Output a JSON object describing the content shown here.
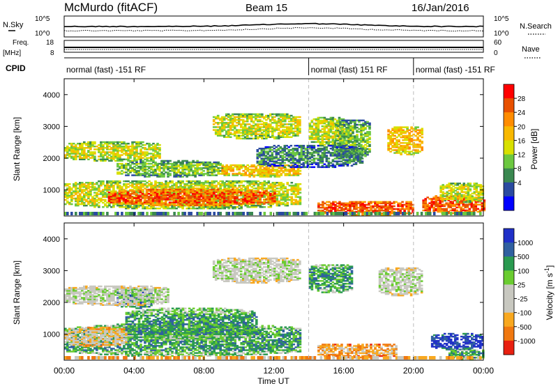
{
  "header": {
    "station": "McMurdo (fitACF)",
    "beam": "Beam 15",
    "date": "16/Jan/2016"
  },
  "side_labels": {
    "nsky": "N.Sky",
    "freq": "Freq.",
    "freq_unit": "[MHz]",
    "cpid": "CPID",
    "nsearch": "N.Search",
    "nave": "Nave"
  },
  "cpid_segments": [
    {
      "label": "normal (fast) -151 RF",
      "start_h": 0,
      "end_h": 14
    },
    {
      "label": "normal (fast) 151 RF",
      "start_h": 14,
      "end_h": 20
    },
    {
      "label": "normal (fast) -151 RF",
      "start_h": 20,
      "end_h": 24
    }
  ],
  "nsky_ticks": {
    "top": "10^5",
    "bottom": "10^0"
  },
  "freq_ticks": {
    "top": "18",
    "bottom": "8"
  },
  "nave_ticks": {
    "top": "60",
    "bottom": "0"
  },
  "chart_data": [
    {
      "type": "heatmap",
      "panel": "power",
      "ylabel": "Slant Range [km]",
      "xlabel": "",
      "x_range_h": [
        0,
        24
      ],
      "ylim": [
        180,
        4500
      ],
      "yticks": [
        1000,
        2000,
        3000,
        4000
      ],
      "colorbar": {
        "label": "Power [dB]",
        "ticks": [
          "28",
          "24",
          "20",
          "16",
          "12",
          "8",
          "4"
        ],
        "colors": [
          "#ff0000",
          "#e85000",
          "#ff8c00",
          "#f8b800",
          "#d8e000",
          "#6cc840",
          "#3a8850",
          "#2a4aa0",
          "#0000ff"
        ]
      },
      "features": [
        {
          "t0": 0.0,
          "t1": 13.5,
          "r0": 400,
          "r1": 1300,
          "level": 4
        },
        {
          "t0": 2.5,
          "t1": 12.0,
          "r0": 500,
          "r1": 1000,
          "level": 7
        },
        {
          "t0": 0.0,
          "t1": 5.5,
          "r0": 1900,
          "r1": 2500,
          "level": 4
        },
        {
          "t0": 3.0,
          "t1": 9.0,
          "r0": 1400,
          "r1": 1900,
          "level": 3
        },
        {
          "t0": 9.0,
          "t1": 13.5,
          "r0": 1400,
          "r1": 1800,
          "level": 5
        },
        {
          "t0": 8.5,
          "t1": 13.5,
          "r0": 2600,
          "r1": 3400,
          "level": 4
        },
        {
          "t0": 14.0,
          "t1": 16.0,
          "r0": 2400,
          "r1": 3300,
          "level": 4
        },
        {
          "t0": 15.5,
          "t1": 17.5,
          "r0": 2000,
          "r1": 3200,
          "level": 3
        },
        {
          "t0": 18.5,
          "t1": 20.5,
          "r0": 2100,
          "r1": 3000,
          "level": 5
        },
        {
          "t0": 14.5,
          "t1": 20.0,
          "r0": 200,
          "r1": 650,
          "level": 7
        },
        {
          "t0": 20.5,
          "t1": 24.0,
          "r0": 250,
          "r1": 800,
          "level": 7
        },
        {
          "t0": 21.5,
          "t1": 24.0,
          "r0": 600,
          "r1": 1200,
          "level": 4
        },
        {
          "t0": 11.0,
          "t1": 17.0,
          "r0": 1700,
          "r1": 2400,
          "level": 2
        }
      ]
    },
    {
      "type": "heatmap",
      "panel": "velocity",
      "ylabel": "Slant Range [km]",
      "xlabel": "Time UT",
      "x_range_h": [
        0,
        24
      ],
      "ylim": [
        180,
        4500
      ],
      "yticks": [
        1000,
        2000,
        3000,
        4000
      ],
      "xtick_labels": [
        "00:00",
        "04:00",
        "08:00",
        "12:00",
        "16:00",
        "20:00",
        "00:00"
      ],
      "colorbar": {
        "label": "Velocity [m s^-1]",
        "ticks": [
          "1000",
          "500",
          "100",
          "25",
          "-25",
          "-100",
          "-500",
          "-1000"
        ],
        "colors": [
          "#2030c8",
          "#3060a0",
          "#2a9a50",
          "#6acc30",
          "#c8c8c0",
          "#c8c8c0",
          "#f8a820",
          "#f07810",
          "#e82010"
        ]
      },
      "features": [
        {
          "t0": 0.0,
          "t1": 13.5,
          "r0": 300,
          "r1": 1300,
          "level": 6
        },
        {
          "t0": 3.5,
          "t1": 11.0,
          "r0": 800,
          "r1": 1800,
          "level": 6
        },
        {
          "t0": 3.0,
          "t1": 5.0,
          "r0": 1800,
          "r1": 2400,
          "level": 7
        },
        {
          "t0": 0.0,
          "t1": 6.0,
          "r0": 1900,
          "r1": 2500,
          "level": 4
        },
        {
          "t0": 8.5,
          "t1": 13.5,
          "r0": 2600,
          "r1": 3400,
          "level": 4
        },
        {
          "t0": 0.0,
          "t1": 3.5,
          "r0": 600,
          "r1": 1200,
          "level": 3
        },
        {
          "t0": 14.5,
          "t1": 19.0,
          "r0": 250,
          "r1": 700,
          "level": 2
        },
        {
          "t0": 18.0,
          "t1": 20.5,
          "r0": 2200,
          "r1": 3100,
          "level": 4
        },
        {
          "t0": 21.0,
          "t1": 24.0,
          "r0": 500,
          "r1": 1000,
          "level": 8
        },
        {
          "t0": 22.0,
          "t1": 24.0,
          "r0": 200,
          "r1": 500,
          "level": 6
        },
        {
          "t0": 14.0,
          "t1": 16.5,
          "r0": 2300,
          "r1": 3200,
          "level": 6
        }
      ]
    }
  ]
}
